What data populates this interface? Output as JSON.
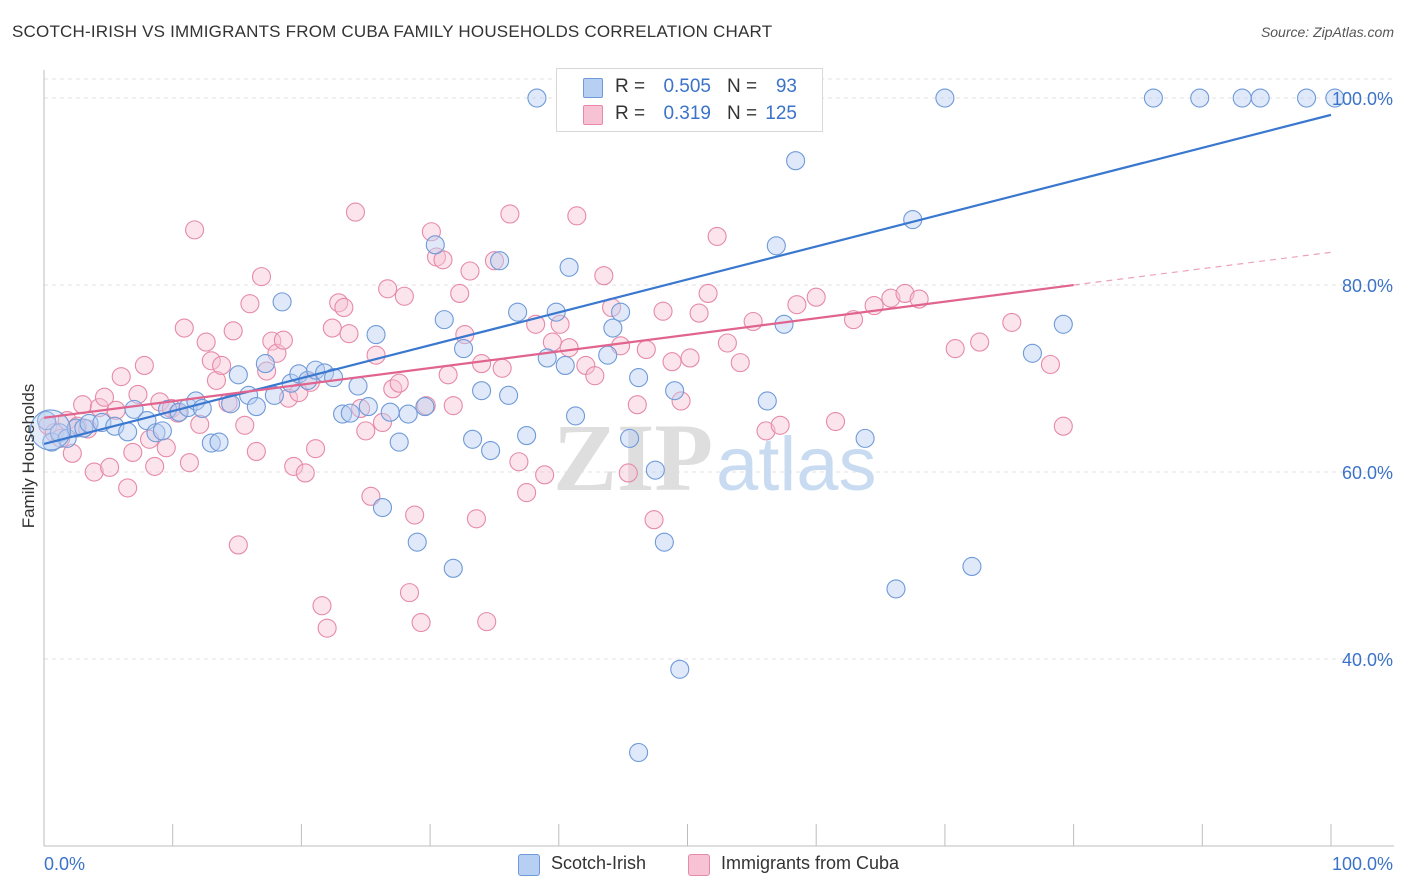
{
  "title": "SCOTCH-IRISH VS IMMIGRANTS FROM CUBA FAMILY HOUSEHOLDS CORRELATION CHART",
  "source": "Source: ZipAtlas.com",
  "watermark": {
    "zip": "ZIP",
    "atlas": "atlas"
  },
  "colors": {
    "blue_fill": "#b7cff2",
    "blue_stroke": "#6f9ad8",
    "blue_line": "#3a78d0",
    "pink_fill": "#f7c3d4",
    "pink_stroke": "#e68aa8",
    "pink_line": "#e0648e",
    "axis_text": "#3b73c8",
    "grid": "#e2e2e2"
  },
  "legend": {
    "rows": [
      {
        "r_label": "R =",
        "r_value": "0.505",
        "n_label": "N =",
        "n_value": "93"
      },
      {
        "r_label": "R =",
        "r_value": "0.319",
        "n_label": "N =",
        "n_value": "125"
      }
    ]
  },
  "bottom_legend": [
    "Scotch-Irish",
    "Immigrants from Cuba"
  ],
  "chart_data": {
    "type": "scatter",
    "title": "SCOTCH-IRISH VS IMMIGRANTS FROM CUBA FAMILY HOUSEHOLDS CORRELATION CHART",
    "xlabel": "",
    "ylabel": "Family Households",
    "xlim": [
      0,
      100
    ],
    "ylim": [
      20,
      103
    ],
    "x_tick_labels": [
      "0.0%",
      "100.0%"
    ],
    "y_ticks": [
      40,
      60,
      80,
      100
    ],
    "y_tick_labels": [
      "40.0%",
      "60.0%",
      "80.0%",
      "100.0%"
    ],
    "grid": true,
    "legend_position": "top-center",
    "series": [
      {
        "name": "Scotch-Irish",
        "r": 0.505,
        "n": 93,
        "trend": {
          "x": [
            0,
            100
          ],
          "y": [
            63.0,
            98.2
          ]
        },
        "points": [
          [
            0.2,
            65.5
          ],
          [
            0.6,
            63.2
          ],
          [
            1.2,
            64.2
          ],
          [
            1.8,
            63.6
          ],
          [
            2.5,
            64.7
          ],
          [
            3.1,
            64.7
          ],
          [
            3.5,
            65.2
          ],
          [
            4.5,
            65.3
          ],
          [
            5.5,
            64.9
          ],
          [
            6.5,
            64.3
          ],
          [
            7.0,
            66.7
          ],
          [
            8.0,
            65.5
          ],
          [
            8.7,
            64.2
          ],
          [
            9.2,
            64.4
          ],
          [
            9.6,
            66.7
          ],
          [
            10.5,
            66.4
          ],
          [
            11.2,
            66.9
          ],
          [
            11.8,
            67.6
          ],
          [
            12.3,
            66.8
          ],
          [
            13.0,
            63.1
          ],
          [
            13.6,
            63.2
          ],
          [
            14.5,
            67.3
          ],
          [
            15.1,
            70.4
          ],
          [
            15.9,
            68.2
          ],
          [
            16.5,
            67.0
          ],
          [
            17.2,
            71.6
          ],
          [
            17.9,
            68.2
          ],
          [
            18.5,
            78.2
          ],
          [
            19.2,
            69.5
          ],
          [
            19.8,
            70.5
          ],
          [
            20.5,
            69.8
          ],
          [
            21.1,
            70.9
          ],
          [
            21.8,
            70.6
          ],
          [
            22.5,
            70.1
          ],
          [
            23.2,
            66.2
          ],
          [
            23.8,
            66.3
          ],
          [
            24.4,
            69.2
          ],
          [
            25.2,
            67.0
          ],
          [
            25.8,
            74.7
          ],
          [
            26.3,
            56.2
          ],
          [
            26.9,
            66.4
          ],
          [
            27.6,
            63.2
          ],
          [
            28.3,
            66.2
          ],
          [
            29.0,
            52.5
          ],
          [
            29.6,
            67.0
          ],
          [
            30.4,
            84.3
          ],
          [
            31.1,
            76.3
          ],
          [
            31.8,
            49.7
          ],
          [
            32.6,
            73.2
          ],
          [
            33.3,
            63.5
          ],
          [
            34.0,
            68.7
          ],
          [
            34.7,
            62.3
          ],
          [
            35.4,
            82.6
          ],
          [
            36.1,
            68.2
          ],
          [
            36.8,
            77.1
          ],
          [
            37.5,
            63.9
          ],
          [
            38.3,
            100
          ],
          [
            39.1,
            72.2
          ],
          [
            39.8,
            77.1
          ],
          [
            40.5,
            71.4
          ],
          [
            40.8,
            81.9
          ],
          [
            41.3,
            66.0
          ],
          [
            41.3,
            100
          ],
          [
            43.8,
            72.5
          ],
          [
            44.2,
            75.4
          ],
          [
            44.8,
            77.1
          ],
          [
            45.5,
            63.6
          ],
          [
            46.2,
            70.1
          ],
          [
            47.5,
            60.2
          ],
          [
            48.2,
            52.5
          ],
          [
            49.0,
            68.7
          ],
          [
            49.4,
            38.9
          ],
          [
            46.2,
            30.0
          ],
          [
            51.2,
            100
          ],
          [
            52.4,
            100
          ],
          [
            54.2,
            100
          ],
          [
            56.2,
            67.6
          ],
          [
            56.9,
            84.2
          ],
          [
            57.5,
            75.8
          ],
          [
            58.4,
            93.3
          ],
          [
            63.8,
            63.6
          ],
          [
            66.2,
            47.5
          ],
          [
            67.5,
            87.0
          ],
          [
            70.0,
            100
          ],
          [
            72.1,
            49.9
          ],
          [
            76.8,
            72.7
          ],
          [
            79.2,
            75.8
          ],
          [
            86.2,
            100
          ],
          [
            89.8,
            100
          ],
          [
            93.1,
            100
          ],
          [
            94.5,
            100
          ],
          [
            98.1,
            100
          ],
          [
            100.3,
            100
          ]
        ]
      },
      {
        "name": "Immigrants from Cuba",
        "r": 0.319,
        "n": 125,
        "trend": {
          "x": [
            0,
            80
          ],
          "y": [
            65.8,
            80.0
          ]
        },
        "trend_dashed": {
          "x": [
            80,
            100
          ],
          "y": [
            80.0,
            83.5
          ]
        },
        "points": [
          [
            0.3,
            65.0
          ],
          [
            0.8,
            64.2
          ],
          [
            1.3,
            63.6
          ],
          [
            1.8,
            65.5
          ],
          [
            2.2,
            62.0
          ],
          [
            2.6,
            64.9
          ],
          [
            3.0,
            67.2
          ],
          [
            3.4,
            64.6
          ],
          [
            3.9,
            60.0
          ],
          [
            4.3,
            66.9
          ],
          [
            4.7,
            68.0
          ],
          [
            5.1,
            60.5
          ],
          [
            5.6,
            66.6
          ],
          [
            6.0,
            70.2
          ],
          [
            6.5,
            58.3
          ],
          [
            6.9,
            62.1
          ],
          [
            7.3,
            68.3
          ],
          [
            7.8,
            71.4
          ],
          [
            8.2,
            63.5
          ],
          [
            8.6,
            60.6
          ],
          [
            9.0,
            67.5
          ],
          [
            9.5,
            62.6
          ],
          [
            9.9,
            66.8
          ],
          [
            10.4,
            66.3
          ],
          [
            10.9,
            75.4
          ],
          [
            11.3,
            61.0
          ],
          [
            11.7,
            85.9
          ],
          [
            12.1,
            65.1
          ],
          [
            12.6,
            73.9
          ],
          [
            13.0,
            71.9
          ],
          [
            13.4,
            69.8
          ],
          [
            13.8,
            71.4
          ],
          [
            14.3,
            67.4
          ],
          [
            14.7,
            75.1
          ],
          [
            15.1,
            52.2
          ],
          [
            15.6,
            65.0
          ],
          [
            16.0,
            78.0
          ],
          [
            16.5,
            62.2
          ],
          [
            16.9,
            80.9
          ],
          [
            17.3,
            70.8
          ],
          [
            17.7,
            74.0
          ],
          [
            18.1,
            72.7
          ],
          [
            18.6,
            74.1
          ],
          [
            19.0,
            67.9
          ],
          [
            19.4,
            60.6
          ],
          [
            19.8,
            68.5
          ],
          [
            20.3,
            59.9
          ],
          [
            20.7,
            69.6
          ],
          [
            21.1,
            62.5
          ],
          [
            21.6,
            45.7
          ],
          [
            22.0,
            43.3
          ],
          [
            22.4,
            75.4
          ],
          [
            22.9,
            78.1
          ],
          [
            23.3,
            77.6
          ],
          [
            23.7,
            74.8
          ],
          [
            24.2,
            87.8
          ],
          [
            24.6,
            66.8
          ],
          [
            25.0,
            64.4
          ],
          [
            25.4,
            57.4
          ],
          [
            25.8,
            72.5
          ],
          [
            26.3,
            65.3
          ],
          [
            26.7,
            79.6
          ],
          [
            27.1,
            68.9
          ],
          [
            27.6,
            69.5
          ],
          [
            28.0,
            78.8
          ],
          [
            28.4,
            47.1
          ],
          [
            28.8,
            55.4
          ],
          [
            29.3,
            43.9
          ],
          [
            29.7,
            67.1
          ],
          [
            30.1,
            85.7
          ],
          [
            30.5,
            83.0
          ],
          [
            31.0,
            82.7
          ],
          [
            31.4,
            70.4
          ],
          [
            31.8,
            67.1
          ],
          [
            32.3,
            79.1
          ],
          [
            32.7,
            74.7
          ],
          [
            33.1,
            81.5
          ],
          [
            33.6,
            55.0
          ],
          [
            34.0,
            71.6
          ],
          [
            34.4,
            44.0
          ],
          [
            35.0,
            82.6
          ],
          [
            35.6,
            71.1
          ],
          [
            36.2,
            87.6
          ],
          [
            36.9,
            61.1
          ],
          [
            37.5,
            57.8
          ],
          [
            38.2,
            75.8
          ],
          [
            38.9,
            59.7
          ],
          [
            39.5,
            73.9
          ],
          [
            40.1,
            75.8
          ],
          [
            40.8,
            73.3
          ],
          [
            41.4,
            87.4
          ],
          [
            42.1,
            71.4
          ],
          [
            42.8,
            70.3
          ],
          [
            43.5,
            81.0
          ],
          [
            44.1,
            77.6
          ],
          [
            44.8,
            73.5
          ],
          [
            45.4,
            59.9
          ],
          [
            46.1,
            67.2
          ],
          [
            46.8,
            73.1
          ],
          [
            47.4,
            54.9
          ],
          [
            48.1,
            77.2
          ],
          [
            48.8,
            71.8
          ],
          [
            49.5,
            67.6
          ],
          [
            50.2,
            72.2
          ],
          [
            50.9,
            77.0
          ],
          [
            51.6,
            79.1
          ],
          [
            52.3,
            85.2
          ],
          [
            53.1,
            73.8
          ],
          [
            54.1,
            71.7
          ],
          [
            55.1,
            76.1
          ],
          [
            56.1,
            64.4
          ],
          [
            57.2,
            65.0
          ],
          [
            58.5,
            77.9
          ],
          [
            60.0,
            78.7
          ],
          [
            61.5,
            65.4
          ],
          [
            62.9,
            76.3
          ],
          [
            64.5,
            77.8
          ],
          [
            65.8,
            78.6
          ],
          [
            66.9,
            79.1
          ],
          [
            68.0,
            78.5
          ],
          [
            70.8,
            73.2
          ],
          [
            72.7,
            73.9
          ],
          [
            75.2,
            76.0
          ],
          [
            78.2,
            71.5
          ],
          [
            79.2,
            64.9
          ]
        ]
      }
    ]
  }
}
